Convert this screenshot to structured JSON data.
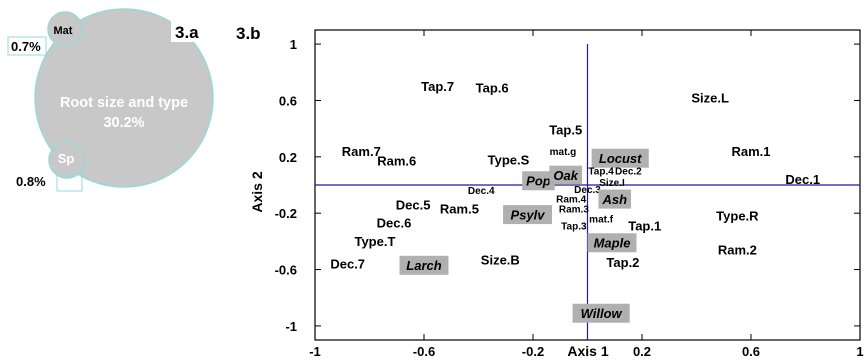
{
  "panel_a": {
    "label": "3.a",
    "big_circle": {
      "name": "Root size and type",
      "pct": "30.2%"
    },
    "mat_circle": {
      "name": "Mat",
      "pct": "0.7%"
    },
    "sp_circle": {
      "name": "Sp",
      "pct": "0.8%"
    },
    "colors": {
      "circle_fill": "#c8c8c8",
      "circle_stroke": "#9ad8d8"
    }
  },
  "panel_b": {
    "label": "3.b"
  },
  "chart_data": {
    "type": "scatter",
    "xlabel": "Axis 1",
    "ylabel": "Axis 2",
    "xlim": [
      -1,
      1
    ],
    "ylim": [
      -1.1,
      1.1
    ],
    "xticks": [
      "-1",
      "-0.6",
      "-0.2",
      "0.2",
      "0.6",
      "1"
    ],
    "xtick_values": [
      -1,
      -0.6,
      -0.2,
      0.2,
      0.6,
      1
    ],
    "yticks": [
      "1",
      "0.6",
      "0.2",
      "-0.2",
      "-0.6",
      "-1"
    ],
    "ytick_values": [
      1,
      0.6,
      0.2,
      -0.2,
      -0.6,
      -1
    ],
    "reference_lines": {
      "x": 0,
      "y": 0,
      "color": "#1a1aa6"
    },
    "highlight_color": "#b0b0b0",
    "points": [
      {
        "label": "Tap.7",
        "x": -0.55,
        "y": 0.7,
        "size": 13
      },
      {
        "label": "Tap.6",
        "x": -0.35,
        "y": 0.69,
        "size": 13
      },
      {
        "label": "Size.L",
        "x": 0.45,
        "y": 0.62,
        "size": 13
      },
      {
        "label": "Tap.5",
        "x": -0.08,
        "y": 0.39,
        "size": 13
      },
      {
        "label": "Ram.1",
        "x": 0.6,
        "y": 0.24,
        "size": 13
      },
      {
        "label": "Ram.7",
        "x": -0.83,
        "y": 0.24,
        "size": 13
      },
      {
        "label": "Ram.6",
        "x": -0.7,
        "y": 0.17,
        "size": 13
      },
      {
        "label": "Type.S",
        "x": -0.29,
        "y": 0.18,
        "size": 13
      },
      {
        "label": "mat.g",
        "x": -0.09,
        "y": 0.24,
        "size": 10
      },
      {
        "label": "Locust",
        "x": 0.12,
        "y": 0.19,
        "size": 13,
        "highlight": true
      },
      {
        "label": "Pop",
        "x": -0.18,
        "y": 0.03,
        "size": 13,
        "highlight": true
      },
      {
        "label": "Oak",
        "x": -0.08,
        "y": 0.07,
        "size": 13,
        "highlight": true
      },
      {
        "label": "Tap.4",
        "x": 0.05,
        "y": 0.1,
        "size": 10
      },
      {
        "label": "Dec.2",
        "x": 0.15,
        "y": 0.1,
        "size": 10
      },
      {
        "label": "Size.I",
        "x": 0.09,
        "y": 0.02,
        "size": 10
      },
      {
        "label": "Dec.1",
        "x": 0.79,
        "y": 0.04,
        "size": 13
      },
      {
        "label": "Dec.4",
        "x": -0.39,
        "y": -0.04,
        "size": 10
      },
      {
        "label": "Dec.3",
        "x": 0.0,
        "y": -0.03,
        "size": 10
      },
      {
        "label": "Ram.4",
        "x": -0.06,
        "y": -0.1,
        "size": 10
      },
      {
        "label": "Ash",
        "x": 0.1,
        "y": -0.1,
        "size": 13,
        "highlight": true
      },
      {
        "label": "Dec.5",
        "x": -0.64,
        "y": -0.14,
        "size": 13
      },
      {
        "label": "Ram.5",
        "x": -0.47,
        "y": -0.17,
        "size": 13
      },
      {
        "label": "Psylv",
        "x": -0.22,
        "y": -0.21,
        "size": 13,
        "highlight": true
      },
      {
        "label": "Ram.3",
        "x": -0.05,
        "y": -0.17,
        "size": 10
      },
      {
        "label": "mat.f",
        "x": 0.05,
        "y": -0.24,
        "size": 10
      },
      {
        "label": "Tap.3",
        "x": -0.05,
        "y": -0.29,
        "size": 10
      },
      {
        "label": "Dec.6",
        "x": -0.71,
        "y": -0.27,
        "size": 13
      },
      {
        "label": "Tap.1",
        "x": 0.21,
        "y": -0.29,
        "size": 13
      },
      {
        "label": "Type.R",
        "x": 0.55,
        "y": -0.22,
        "size": 13
      },
      {
        "label": "Type.T",
        "x": -0.78,
        "y": -0.4,
        "size": 13
      },
      {
        "label": "Maple",
        "x": 0.09,
        "y": -0.41,
        "size": 13,
        "highlight": true
      },
      {
        "label": "Ram.2",
        "x": 0.55,
        "y": -0.46,
        "size": 13
      },
      {
        "label": "Size.B",
        "x": -0.32,
        "y": -0.53,
        "size": 13
      },
      {
        "label": "Dec.7",
        "x": -0.88,
        "y": -0.56,
        "size": 13
      },
      {
        "label": "Larch",
        "x": -0.6,
        "y": -0.57,
        "size": 13,
        "highlight": true
      },
      {
        "label": "Tap.2",
        "x": 0.13,
        "y": -0.55,
        "size": 13
      },
      {
        "label": "Willow",
        "x": 0.05,
        "y": -0.91,
        "size": 13,
        "highlight": true
      }
    ]
  }
}
